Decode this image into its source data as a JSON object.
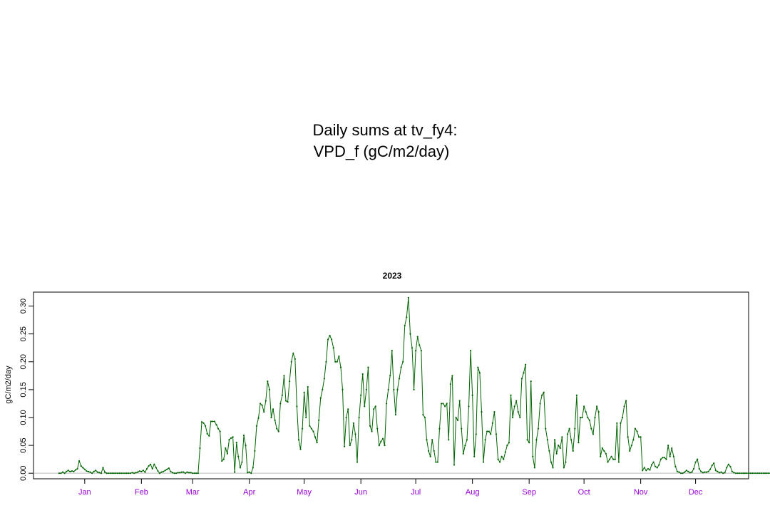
{
  "title_line1": "Daily sums at tv_fy4:",
  "title_line2": "VPD_f (gC/m2/day)",
  "chart_data": {
    "type": "line",
    "title": "2023",
    "ylabel": "gC/m2/day",
    "xlabel": "",
    "ylim": [
      -0.01,
      0.325
    ],
    "yticks": [
      "0.00",
      "0.05",
      "0.10",
      "0.15",
      "0.20",
      "0.25",
      "0.30"
    ],
    "x_tick_labels": [
      "Jan",
      "Feb",
      "Mar",
      "Apr",
      "May",
      "Jun",
      "Jul",
      "Aug",
      "Sep",
      "Oct",
      "Nov",
      "Dec"
    ],
    "x_tick_days": [
      15,
      46,
      74,
      105,
      135,
      166,
      196,
      227,
      258,
      288,
      319,
      349
    ],
    "x_range_days": [
      -13,
      378
    ],
    "line_color": "#006400",
    "label_color": "#9400D3",
    "grid": false,
    "series": [
      {
        "x_start_day": 1,
        "x_step_days": 1,
        "values": [
          0.0,
          0.0,
          0.002,
          0.0,
          0.003,
          0.005,
          0.003,
          0.004,
          0.003,
          0.006,
          0.008,
          0.022,
          0.013,
          0.01,
          0.007,
          0.004,
          0.003,
          0.002,
          0.0,
          0.003,
          0.005,
          0.002,
          0.001,
          0.0,
          0.01,
          0.002,
          0.0,
          0.0,
          0.0,
          0.0,
          0.0,
          0.0,
          0.0,
          0.0,
          0.0,
          0.0,
          0.0,
          0.0,
          0.0,
          0.0,
          0.001,
          0.0,
          0.001,
          0.002,
          0.004,
          0.003,
          0.005,
          0.002,
          0.008,
          0.013,
          0.016,
          0.008,
          0.016,
          0.01,
          0.004,
          0.0,
          0.002,
          0.003,
          0.005,
          0.007,
          0.009,
          0.003,
          0.001,
          0.0,
          0.0,
          0.001,
          0.001,
          0.002,
          0.002,
          0.0,
          0.002,
          0.001,
          0.001,
          0.0,
          0.0,
          0.0,
          0.0,
          0.045,
          0.092,
          0.09,
          0.085,
          0.071,
          0.067,
          0.093,
          0.093,
          0.093,
          0.087,
          0.08,
          0.075,
          0.022,
          0.025,
          0.045,
          0.035,
          0.06,
          0.063,
          0.065,
          0.002,
          0.055,
          0.03,
          0.01,
          0.02,
          0.068,
          0.05,
          0.001,
          0.002,
          0.0,
          0.01,
          0.04,
          0.085,
          0.099,
          0.125,
          0.122,
          0.11,
          0.13,
          0.165,
          0.15,
          0.1,
          0.115,
          0.095,
          0.08,
          0.075,
          0.125,
          0.14,
          0.175,
          0.13,
          0.128,
          0.165,
          0.2,
          0.215,
          0.205,
          0.12,
          0.06,
          0.043,
          0.08,
          0.145,
          0.1,
          0.155,
          0.085,
          0.08,
          0.075,
          0.065,
          0.055,
          0.095,
          0.135,
          0.15,
          0.17,
          0.2,
          0.24,
          0.247,
          0.24,
          0.225,
          0.2,
          0.2,
          0.21,
          0.19,
          0.15,
          0.048,
          0.1,
          0.115,
          0.05,
          0.06,
          0.09,
          0.07,
          0.02,
          0.1,
          0.14,
          0.178,
          0.12,
          0.15,
          0.19,
          0.085,
          0.075,
          0.115,
          0.12,
          0.08,
          0.05,
          0.057,
          0.062,
          0.05,
          0.125,
          0.15,
          0.175,
          0.22,
          0.15,
          0.105,
          0.15,
          0.17,
          0.19,
          0.2,
          0.265,
          0.28,
          0.315,
          0.25,
          0.225,
          0.15,
          0.22,
          0.245,
          0.23,
          0.22,
          0.105,
          0.1,
          0.06,
          0.04,
          0.03,
          0.06,
          0.04,
          0.02,
          0.02,
          0.08,
          0.125,
          0.125,
          0.12,
          0.125,
          0.06,
          0.16,
          0.175,
          0.015,
          0.1,
          0.095,
          0.13,
          0.08,
          0.035,
          0.05,
          0.06,
          0.12,
          0.22,
          0.14,
          0.03,
          0.07,
          0.19,
          0.18,
          0.11,
          0.02,
          0.06,
          0.075,
          0.075,
          0.07,
          0.09,
          0.11,
          0.07,
          0.025,
          0.02,
          0.03,
          0.025,
          0.038,
          0.05,
          0.055,
          0.14,
          0.1,
          0.12,
          0.13,
          0.11,
          0.1,
          0.17,
          0.18,
          0.195,
          0.06,
          0.055,
          0.165,
          0.03,
          0.01,
          0.06,
          0.08,
          0.125,
          0.14,
          0.145,
          0.08,
          0.06,
          0.04,
          0.02,
          0.01,
          0.06,
          0.035,
          0.05,
          0.045,
          0.065,
          0.01,
          0.02,
          0.07,
          0.08,
          0.06,
          0.04,
          0.08,
          0.14,
          0.055,
          0.1,
          0.1,
          0.12,
          0.11,
          0.1,
          0.095,
          0.08,
          0.07,
          0.1,
          0.12,
          0.11,
          0.03,
          0.045,
          0.04,
          0.035,
          0.02,
          0.025,
          0.03,
          0.025,
          0.025,
          0.09,
          0.02,
          0.09,
          0.1,
          0.12,
          0.13,
          0.065,
          0.04,
          0.05,
          0.06,
          0.08,
          0.075,
          0.065,
          0.065,
          0.005,
          0.01,
          0.005,
          0.008,
          0.006,
          0.015,
          0.02,
          0.012,
          0.01,
          0.015,
          0.025,
          0.028,
          0.028,
          0.025,
          0.05,
          0.03,
          0.045,
          0.03,
          0.012,
          0.003,
          0.002,
          0.0,
          0.0,
          0.002,
          0.005,
          0.003,
          0.001,
          0.002,
          0.008,
          0.02,
          0.025,
          0.008,
          0.003,
          0.001,
          0.002,
          0.002,
          0.003,
          0.007,
          0.014,
          0.018,
          0.005,
          0.003,
          0.001,
          0.002,
          0.0,
          0.001,
          0.01,
          0.016,
          0.012,
          0.003,
          0.001,
          0.0,
          0.0,
          0.0,
          0.0,
          0.0,
          0.0,
          0.0,
          0.0,
          0.0,
          0.0,
          0.0,
          0.0,
          0.0,
          0.0,
          0.0,
          0.0,
          0.0,
          0.0,
          0.0,
          0.0,
          0.0,
          0.0,
          0.0,
          0.0,
          0.001,
          0.002,
          0.003,
          0.004,
          0.004,
          0.003,
          0.002,
          0.002,
          0.002,
          0.004,
          0.006,
          0.002,
          0.004,
          0.004,
          0.0,
          0.0,
          0.001,
          0.002,
          0.002,
          0.002,
          0.003,
          0.002,
          0.003,
          0.002,
          0.003,
          0.003,
          0.002,
          0.002,
          0.003,
          0.002,
          0.002
        ]
      }
    ]
  }
}
